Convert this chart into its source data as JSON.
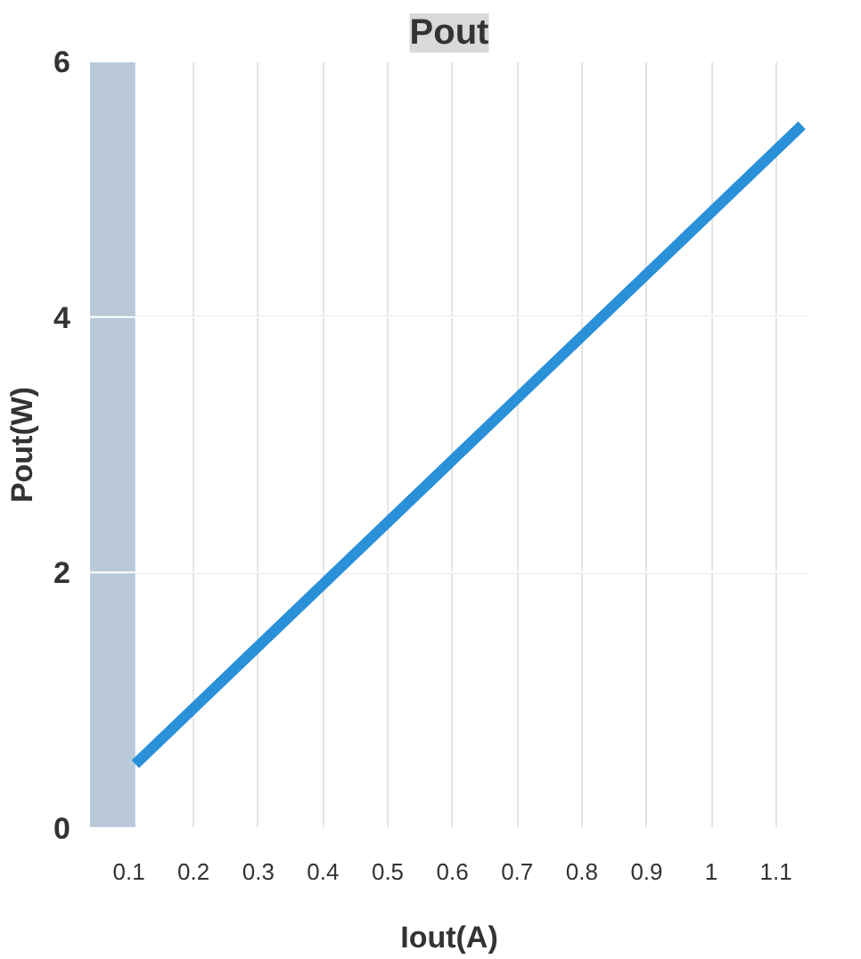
{
  "chart_data": {
    "type": "line",
    "title": "Pout",
    "xlabel": "Iout(A)",
    "ylabel": "Pout(W)",
    "x": [
      0.11,
      1.14
    ],
    "series": [
      {
        "color": "#2a90d8",
        "values": [
          0.5,
          5.5
        ]
      }
    ],
    "xlim": [
      0.04,
      1.15
    ],
    "ylim": [
      0,
      6
    ],
    "xticks": [
      0.1,
      0.2,
      0.3,
      0.4,
      0.5,
      0.6,
      0.7,
      0.8,
      0.9,
      1,
      1.1
    ],
    "yticks": [
      0,
      2,
      4,
      6
    ],
    "bands": [
      {
        "axis": "x",
        "from": 0.04,
        "to": 0.11,
        "color": "#b9c9da"
      }
    ],
    "grid": true
  }
}
